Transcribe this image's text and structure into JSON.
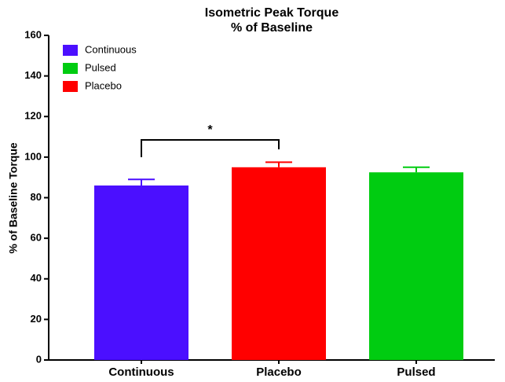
{
  "chart_data": {
    "type": "bar",
    "title": [
      "Isometric Peak Torque",
      "% of Baseline"
    ],
    "y_label": "% of Baseline Torque",
    "categories": [
      "Continuous",
      "Placebo",
      "Pulsed"
    ],
    "values": [
      86,
      95,
      92.5
    ],
    "errors": [
      3,
      2.5,
      2.5
    ],
    "colors": [
      "#4b0fff",
      "#ff0000",
      "#00cc11"
    ],
    "legend": [
      {
        "name": "Continuous",
        "color": "#4b0fff"
      },
      {
        "name": "Pulsed",
        "color": "#00cc11"
      },
      {
        "name": "Placebo",
        "color": "#ff0000"
      }
    ],
    "legend_position": "upper left",
    "annotation": "*",
    "ylim": [
      0,
      160
    ],
    "yticks": [
      0,
      20,
      40,
      60,
      80,
      100,
      120,
      140,
      160
    ],
    "grid": false
  }
}
